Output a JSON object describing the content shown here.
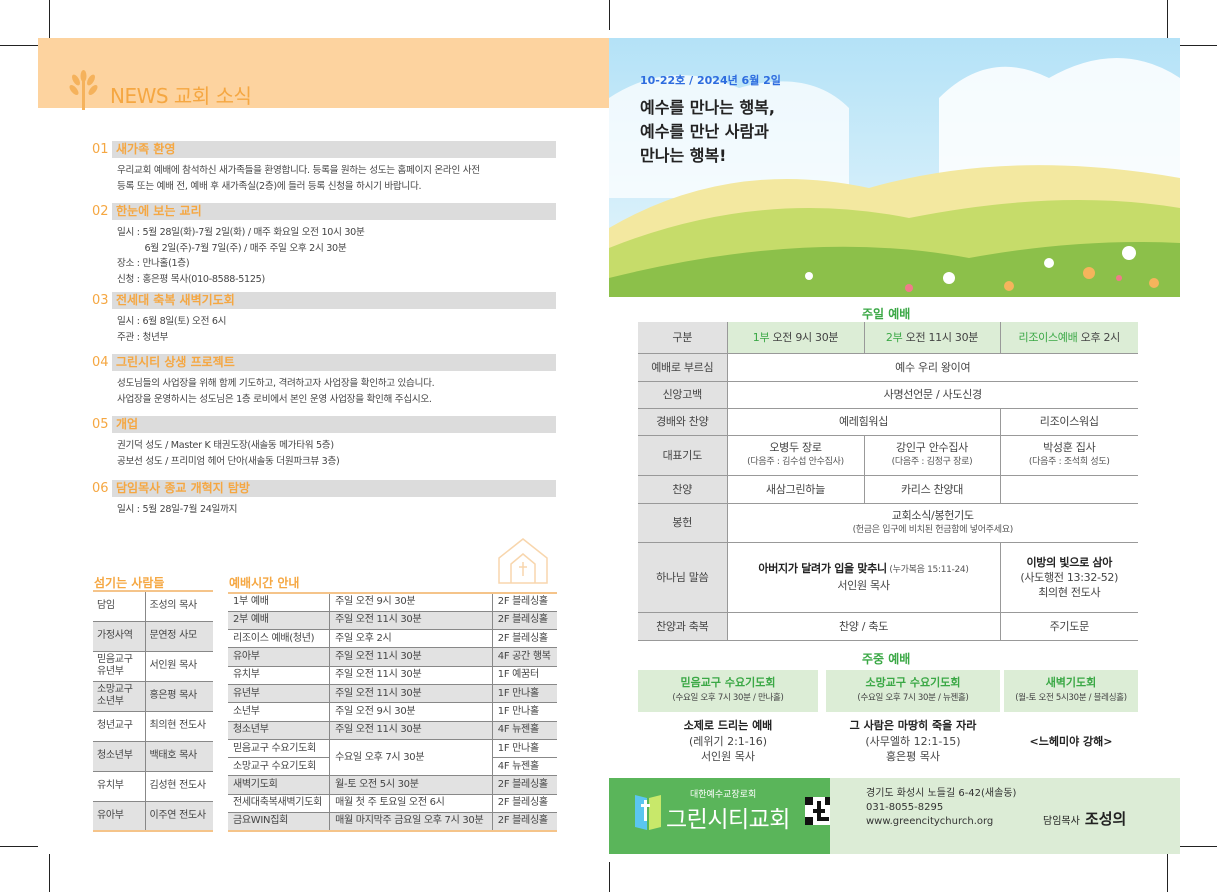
{
  "news": {
    "title": "NEWS 교회 소식",
    "sections": [
      {
        "num": "01",
        "title": "새가족 환영",
        "body": "우리교회 예배에 참석하신 새가족들을 환영합니다. 등록을 원하는 성도는 홈페이지 온라인 사전\n등록 또는 예배 전, 예배 후 새가족실(2층)에 들러 등록 신청을 하시기 바랍니다."
      },
      {
        "num": "02",
        "title": "한눈에 보는 교리",
        "body": "일시 : 5월 28일(화)-7월 2일(화) / 매주 화요일 오전 10시 30분\n          6월 2일(주)-7월 7일(주) / 매주 주일 오후 2시 30분\n장소 : 만나홀(1층)\n신청 : 홍은평 목사(010-8588-5125)"
      },
      {
        "num": "03",
        "title": "전세대 축복 새벽기도회",
        "body": "일시 : 6월 8일(토) 오전 6시\n주관 : 청년부"
      },
      {
        "num": "04",
        "title": "그린시티 상생 프로젝트",
        "body": "성도님들의 사업장을 위해 함께 기도하고, 격려하고자 사업장을 확인하고 있습니다.\n사업장을 운영하시는 성도님은 1층 로비에서 본인 운영 사업장을 확인해 주십시오."
      },
      {
        "num": "05",
        "title": "개업",
        "body": "권기덕 성도 / Master K 태권도장(새솔동 메가타워 5층)\n공보선 성도 / 프리미엄 헤어 단아(새솔동 더원파크뷰 3층)"
      },
      {
        "num": "06",
        "title": "담임목사 종교 개혁지 탐방",
        "body": "일시 : 5월 28일-7월 24일까지"
      }
    ]
  },
  "staff": {
    "title": "섬기는 사람들",
    "rows": [
      [
        "담임",
        "조성의 목사"
      ],
      [
        "가정사역",
        "문연정 사모"
      ],
      [
        "믿음교구\n유년부",
        "서인원 목사"
      ],
      [
        "소망교구\n소년부",
        "홍은평 목사"
      ],
      [
        "청년교구",
        "최의현 전도사"
      ],
      [
        "청소년부",
        "백태호 목사"
      ],
      [
        "유치부",
        "김성현 전도사"
      ],
      [
        "유아부",
        "이주연 전도사"
      ]
    ]
  },
  "times": {
    "title": "예배시간 안내",
    "rows": [
      [
        "1부 예배",
        "주일 오전 9시 30분",
        "2F 블레싱홀"
      ],
      [
        "2부 예배",
        "주일 오전 11시 30분",
        "2F 블레싱홀"
      ],
      [
        "리조이스 예배(청년)",
        "주일 오후 2시",
        "2F 블레싱홀"
      ],
      [
        "유아부",
        "주일 오전 11시 30분",
        "4F 공간 행복"
      ],
      [
        "유치부",
        "주일 오전 11시 30분",
        "1F 예꿈터"
      ],
      [
        "유년부",
        "주일 오전 11시 30분",
        "1F 만나홀"
      ],
      [
        "소년부",
        "주일 오전 9시 30분",
        "1F 만나홀"
      ],
      [
        "청소년부",
        "주일 오전 11시 30분",
        "4F 뉴젠홀"
      ],
      [
        "믿음교구 수요기도회",
        "수요일 오후 7시 30분",
        "1F 만나홀"
      ],
      [
        "소망교구 수요기도회",
        "",
        "4F 뉴젠홀"
      ],
      [
        "새벽기도회",
        "월-토 오전 5시 30분",
        "2F 블레싱홀"
      ],
      [
        "전세대축복새벽기도회",
        "매월 첫 주 토요일 오전 6시",
        "2F 블레싱홀"
      ],
      [
        "금요WIN집회",
        "매월 마지막주 금요일 오후 7시 30분",
        "2F 블레싱홀"
      ]
    ]
  },
  "cover": {
    "issue": "10-22호 / 2024년 6월 2일",
    "headline": "예수를 만나는 행복,\n예수를 만난 사람과\n만나는 행복!"
  },
  "sunday": {
    "title": "주일 예배",
    "header": {
      "label": "구분",
      "c1a": "1부",
      "c1b": " 오전 9시 30분",
      "c2a": "2부",
      "c2b": " 오전 11시 30분",
      "c3a": "리조이스예배",
      "c3b": " 오후 2시"
    },
    "call": {
      "label": "예배로 부르심",
      "v": "예수 우리 왕이여"
    },
    "creed": {
      "label": "신앙고백",
      "v": "사명선언문 / 사도신경"
    },
    "praise": {
      "label": "경배와 찬양",
      "v12": "예레힘워십",
      "v3": "리조이스워십"
    },
    "prayer": {
      "label": "대표기도",
      "p1": "오병두 장로",
      "n1": "(다음주 : 김수섭 안수집사)",
      "p2": "강인구 안수집사",
      "n2": "(다음주 : 김정구 장로)",
      "p3": "박성훈 집사",
      "n3": "(다음주 : 조석희 성도)"
    },
    "choir": {
      "label": "찬양",
      "v1": "새삼그린하늘",
      "v2": "카리스 찬양대"
    },
    "offering": {
      "label": "봉헌",
      "v": "교회소식/봉헌기도",
      "note": "(헌금은 입구에 비치된 헌금함에 넣어주세요)"
    },
    "sermon": {
      "label": "하나님 말씀",
      "t12": "아버지가 달려가 입을 맞추니",
      "r12": " (누가복음 15:11-24)",
      "s12": "서인원 목사",
      "t3": "이방의 빛으로 삼아",
      "r3": "(사도행전 13:32-52)",
      "s3": "최의현 전도사"
    },
    "blessing": {
      "label": "찬양과 축복",
      "v12": "찬양 / 축도",
      "v3": "주기도문"
    }
  },
  "weekday": {
    "title": "주중 예배",
    "items": [
      {
        "name": "믿음교구 수요기도회",
        "when": "(수요일 오후 7시 30분 / 만나홀)",
        "title": "소제로 드리는 예배",
        "ref": "(레위기 2:1-16)",
        "by": "서인원 목사"
      },
      {
        "name": "소망교구 수요기도회",
        "when": "(수요일 오후 7시 30분 / 뉴젠홀)",
        "title": "그 사람은 마땅히 죽을 자라",
        "ref": "(사무엘하 12:1-15)",
        "by": "홍은평 목사"
      },
      {
        "name": "새벽기도회",
        "when": "(월-토 오전 5시30분 / 블레싱홀)",
        "title": "<느헤미야 강해>"
      }
    ]
  },
  "footer": {
    "denomination": "대한예수교장로회",
    "church": "그린시티교회",
    "address": "경기도 화성시 노들길 6-42(새솔동)",
    "phone": "031-8055-8295",
    "web": "www.greencitychurch.org",
    "pastor_label": "담임목사",
    "pastor": "조성의"
  },
  "colors": {
    "orange": "#f5a742",
    "band": "#fdd39f",
    "green": "#3aa845",
    "footer_green": "#5ab55a",
    "light_green": "#dcedd6"
  }
}
